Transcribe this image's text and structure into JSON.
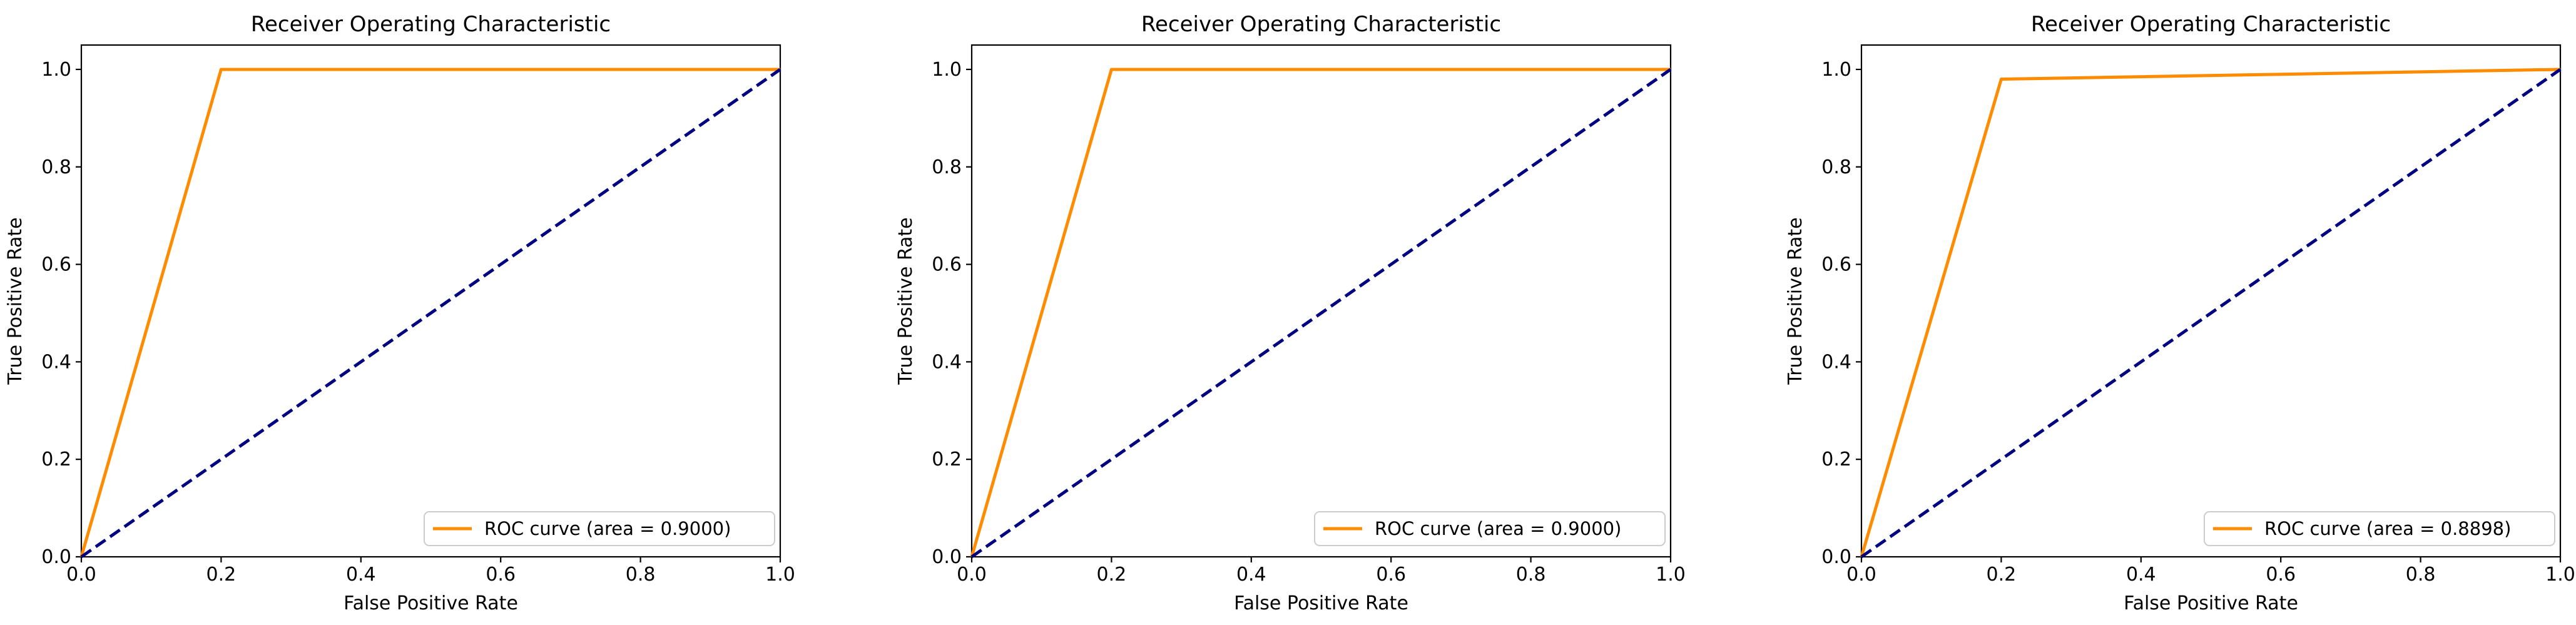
{
  "figure": {
    "background": "#ffffff",
    "frame_color": "#000000",
    "text_color": "#000000",
    "legend_border_color": "#cccccc",
    "legend_bg_color": "#ffffff"
  },
  "chart_data": [
    {
      "type": "line",
      "title": "Receiver Operating Characteristic",
      "xlabel": "False Positive Rate",
      "ylabel": "True Positive Rate",
      "xlim": [
        0.0,
        1.0
      ],
      "ylim": [
        0.0,
        1.05
      ],
      "xticks": [
        "0.0",
        "0.2",
        "0.4",
        "0.6",
        "0.8",
        "1.0"
      ],
      "yticks": [
        "0.0",
        "0.2",
        "0.4",
        "0.6",
        "0.8",
        "1.0"
      ],
      "grid": false,
      "legend_position": "lower right",
      "auc": "0.9000",
      "series": [
        {
          "name": "ROC curve (area = 0.9000)",
          "color": "#FF8C00",
          "style": "solid",
          "in_legend": true,
          "x": [
            0.0,
            0.2,
            1.0
          ],
          "y": [
            0.0,
            1.0,
            1.0
          ]
        },
        {
          "name": "chance-diagonal",
          "color": "#000080",
          "style": "dashed",
          "in_legend": false,
          "x": [
            0.0,
            1.0
          ],
          "y": [
            0.0,
            1.0
          ]
        }
      ]
    },
    {
      "type": "line",
      "title": "Receiver Operating Characteristic",
      "xlabel": "False Positive Rate",
      "ylabel": "True Positive Rate",
      "xlim": [
        0.0,
        1.0
      ],
      "ylim": [
        0.0,
        1.05
      ],
      "xticks": [
        "0.0",
        "0.2",
        "0.4",
        "0.6",
        "0.8",
        "1.0"
      ],
      "yticks": [
        "0.0",
        "0.2",
        "0.4",
        "0.6",
        "0.8",
        "1.0"
      ],
      "grid": false,
      "legend_position": "lower right",
      "auc": "0.9000",
      "series": [
        {
          "name": "ROC curve (area = 0.9000)",
          "color": "#FF8C00",
          "style": "solid",
          "in_legend": true,
          "x": [
            0.0,
            0.2,
            1.0
          ],
          "y": [
            0.0,
            1.0,
            1.0
          ]
        },
        {
          "name": "chance-diagonal",
          "color": "#000080",
          "style": "dashed",
          "in_legend": false,
          "x": [
            0.0,
            1.0
          ],
          "y": [
            0.0,
            1.0
          ]
        }
      ]
    },
    {
      "type": "line",
      "title": "Receiver Operating Characteristic",
      "xlabel": "False Positive Rate",
      "ylabel": "True Positive Rate",
      "xlim": [
        0.0,
        1.0
      ],
      "ylim": [
        0.0,
        1.05
      ],
      "xticks": [
        "0.0",
        "0.2",
        "0.4",
        "0.6",
        "0.8",
        "1.0"
      ],
      "yticks": [
        "0.0",
        "0.2",
        "0.4",
        "0.6",
        "0.8",
        "1.0"
      ],
      "grid": false,
      "legend_position": "lower right",
      "auc": "0.8898",
      "series": [
        {
          "name": "ROC curve (area = 0.8898)",
          "color": "#FF8C00",
          "style": "solid",
          "in_legend": true,
          "x": [
            0.0,
            0.2,
            1.0
          ],
          "y": [
            0.0,
            0.98,
            1.0
          ]
        },
        {
          "name": "chance-diagonal",
          "color": "#000080",
          "style": "dashed",
          "in_legend": false,
          "x": [
            0.0,
            1.0
          ],
          "y": [
            0.0,
            1.0
          ]
        }
      ]
    }
  ]
}
